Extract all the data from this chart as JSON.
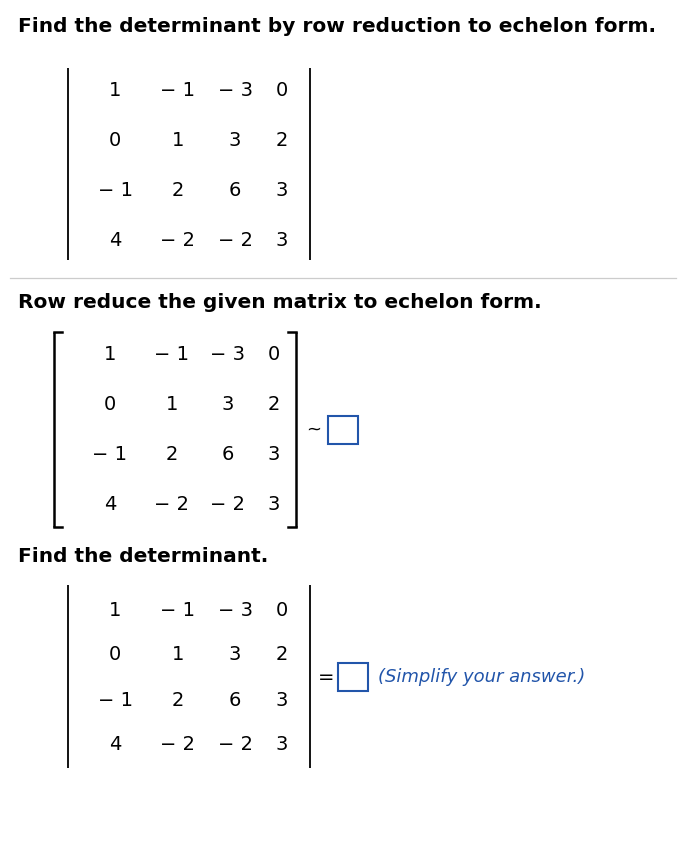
{
  "title_text": "Find the determinant by row reduction to echelon form.",
  "section2_text": "Row reduce the given matrix to echelon form.",
  "section3_text": "Find the determinant.",
  "matrix_rows": [
    [
      "1",
      "− 1",
      "− 3",
      "0"
    ],
    [
      "0",
      "1",
      "3",
      "2"
    ],
    [
      "− 1",
      "2",
      "6",
      "3"
    ],
    [
      "4",
      "− 2",
      "− 2",
      "3"
    ]
  ],
  "simplify_text": "(Simplify your answer.)",
  "bg_color": "#ffffff",
  "text_color": "#000000",
  "blue_color": "#2255aa",
  "tilde_color": "#000000",
  "equals_color": "#000000",
  "sep_color": "#cccccc",
  "font_size_title": 14.5,
  "font_size_matrix": 14,
  "font_size_section": 14.5,
  "font_size_tilde": 13,
  "font_size_simplify": 13
}
